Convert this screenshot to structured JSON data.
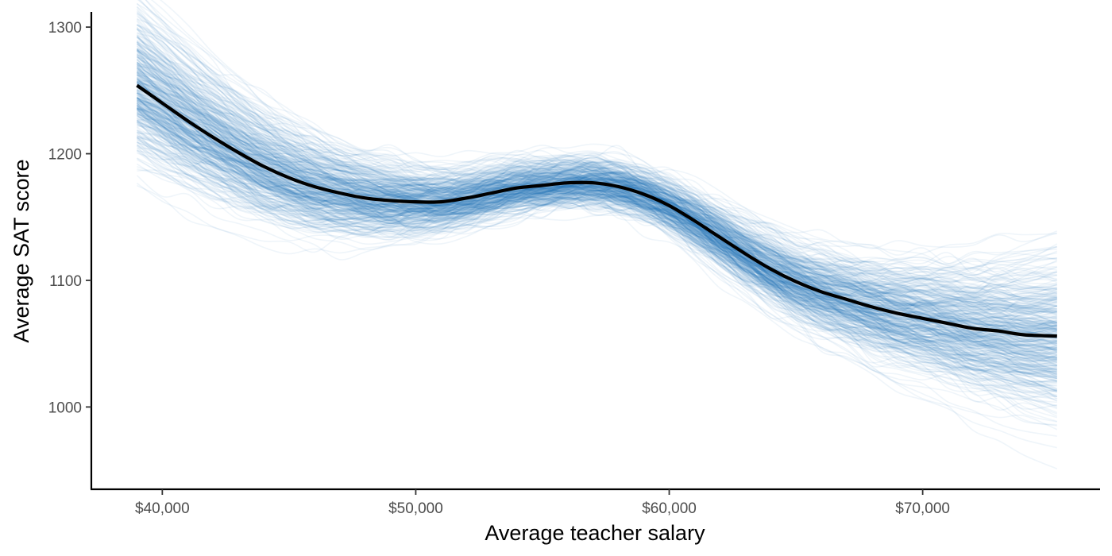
{
  "chart_data": {
    "type": "line",
    "title": "",
    "xlabel": "Average teacher salary",
    "ylabel": "Average SAT score",
    "xlim": [
      37200,
      77000
    ],
    "ylim": [
      935,
      1312
    ],
    "x_ticks": [
      {
        "value": 40000,
        "label": "$40,000"
      },
      {
        "value": 50000,
        "label": "$50,000"
      },
      {
        "value": 60000,
        "label": "$60,000"
      },
      {
        "value": 70000,
        "label": "$70,000"
      }
    ],
    "y_ticks": [
      {
        "value": 1000,
        "label": "1000"
      },
      {
        "value": 1100,
        "label": "1100"
      },
      {
        "value": 1200,
        "label": "1200"
      },
      {
        "value": 1300,
        "label": "1300"
      }
    ],
    "grid": false,
    "legend": "none",
    "series": [
      {
        "role": "mean-fit",
        "color": "#000000",
        "x": [
          39000,
          40000,
          41000,
          42000,
          43000,
          44000,
          45000,
          46000,
          47000,
          48000,
          49000,
          50000,
          51000,
          52000,
          53000,
          54000,
          55000,
          56000,
          57000,
          58000,
          59000,
          60000,
          61000,
          62000,
          63000,
          64000,
          65000,
          66000,
          67000,
          68000,
          69000,
          70000,
          71000,
          72000,
          73000,
          74000,
          75300
        ],
        "y": [
          1254,
          1240,
          1226,
          1213,
          1201,
          1190,
          1181,
          1174,
          1169,
          1165,
          1163,
          1162,
          1162,
          1165,
          1169,
          1173,
          1175,
          1177,
          1177,
          1174,
          1168,
          1159,
          1147,
          1134,
          1121,
          1109,
          1099,
          1091,
          1085,
          1079,
          1074,
          1070,
          1066,
          1062,
          1060,
          1057,
          1056
        ]
      },
      {
        "role": "posterior-draws",
        "color": "#1f77b4",
        "opacity": 0.07,
        "count": 400
      }
    ]
  }
}
